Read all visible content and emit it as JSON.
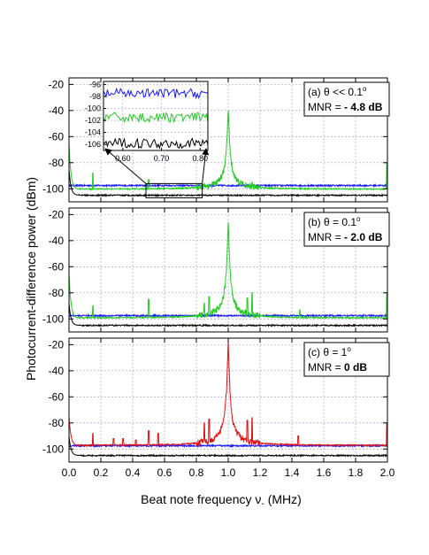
{
  "chart_data": {
    "type": "line",
    "xlabel": "Beat note frequency ν",
    "xlabel_sub": "-",
    "xlabel_unit": "(MHz)",
    "ylabel": "Photocurrent-difference power (dBm)",
    "xlim": [
      0.0,
      2.0
    ],
    "ylim": [
      -110,
      -15
    ],
    "x_ticks": [
      "0.0",
      "0.2",
      "0.4",
      "0.6",
      "0.8",
      "1.0",
      "1.2",
      "1.4",
      "1.6",
      "1.8",
      "2.0"
    ],
    "y_ticks": [
      "-20",
      "-40",
      "-60",
      "-80",
      "-100"
    ],
    "grid": true,
    "colors": {
      "blue": "#1a1aff",
      "green": "#22cc22",
      "red": "#e01010",
      "black": "#000000",
      "grid": "#9999dd"
    },
    "panels": [
      {
        "label": "(a) θ << 0.1°",
        "label_prefix": "(a) θ << 0.1",
        "mnr_prefix": "MNR = ",
        "mnr_value": "- 4.8 dB",
        "signal_color": "green",
        "series": [
          {
            "color": "blue",
            "baseline": -97.5,
            "noise": 0.6
          },
          {
            "color": "green",
            "baseline": -100.5,
            "noise": 0.7,
            "peak": {
              "x": 1.0,
              "y": -40
            },
            "spurs": [
              {
                "x": 0.15,
                "y": -88
              },
              {
                "x": 0.5,
                "y": -93
              },
              {
                "x": 1.15,
                "y": -95
              }
            ],
            "edge_left": -65,
            "edge_right": -80
          },
          {
            "color": "black",
            "baseline": -105,
            "noise": 0.5,
            "edge_left": -85
          }
        ],
        "inset": {
          "xlim": [
            0.55,
            0.82
          ],
          "ylim": [
            -107,
            -95.5
          ],
          "x_ticks": [
            "0.60",
            "0.70",
            "0.80"
          ],
          "y_ticks": [
            "-96",
            "-98",
            "-100",
            "-102",
            "-104",
            "-106"
          ],
          "series": [
            {
              "color": "blue",
              "baseline": -97.5
            },
            {
              "color": "green",
              "baseline": -101.5
            },
            {
              "color": "black",
              "baseline": -105.8
            }
          ]
        }
      },
      {
        "label": "(b) θ = 0.1°",
        "label_prefix": "(b) θ = 0.1",
        "mnr_prefix": "MNR = ",
        "mnr_value": "- 2.0 dB",
        "signal_color": "green",
        "series": [
          {
            "color": "blue",
            "baseline": -97.5,
            "noise": 0.6
          },
          {
            "color": "green",
            "baseline": -99.5,
            "noise": 0.8,
            "peak": {
              "x": 1.0,
              "y": -26
            },
            "spurs": [
              {
                "x": 0.15,
                "y": -90
              },
              {
                "x": 0.5,
                "y": -85
              },
              {
                "x": 0.85,
                "y": -88
              },
              {
                "x": 0.88,
                "y": -83
              },
              {
                "x": 1.12,
                "y": -84
              },
              {
                "x": 1.15,
                "y": -80
              },
              {
                "x": 1.45,
                "y": -93
              }
            ],
            "edge_left": -65,
            "edge_right": -80
          },
          {
            "color": "black",
            "baseline": -105,
            "noise": 0.5,
            "edge_left": -88
          }
        ]
      },
      {
        "label": "(c) θ = 1°",
        "label_prefix": "(c) θ = 1",
        "mnr_prefix": "MNR = ",
        "mnr_value": "0 dB",
        "signal_color": "red",
        "series": [
          {
            "color": "blue",
            "baseline": -97.5,
            "noise": 0.6
          },
          {
            "color": "red",
            "baseline": -97.5,
            "noise": 0.9,
            "peak": {
              "x": 1.0,
              "y": -17
            },
            "spurs": [
              {
                "x": 0.15,
                "y": -88
              },
              {
                "x": 0.28,
                "y": -92
              },
              {
                "x": 0.34,
                "y": -92
              },
              {
                "x": 0.42,
                "y": -93
              },
              {
                "x": 0.5,
                "y": -86
              },
              {
                "x": 0.56,
                "y": -88
              },
              {
                "x": 0.85,
                "y": -80
              },
              {
                "x": 0.88,
                "y": -77
              },
              {
                "x": 1.12,
                "y": -78
              },
              {
                "x": 1.15,
                "y": -76
              },
              {
                "x": 1.44,
                "y": -90
              }
            ],
            "edge_left": -75,
            "edge_right": -80
          },
          {
            "color": "black",
            "baseline": -105,
            "noise": 0.5,
            "edge_left": -90
          }
        ]
      }
    ]
  }
}
